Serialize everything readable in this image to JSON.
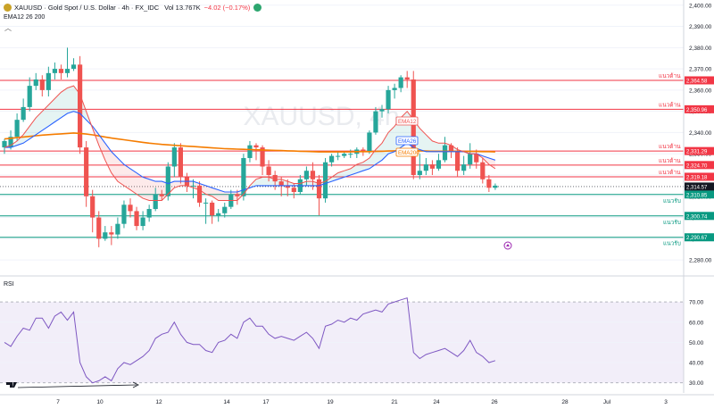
{
  "header": {
    "symbol": "XAUUSD",
    "title": "XAUUSD · Gold Spot / U.S. Dollar · 4h · FX_IDC",
    "volume": "Vol 13.767K",
    "change": "−4.02 (−0.17%)",
    "indicator": "EMA12 26 200",
    "sym_icon": "gold-coin-icon",
    "flag_icon": "market-open-icon"
  },
  "watermark": "XAUUSD, 4h",
  "rsi_title": "RSI",
  "colors": {
    "up": "#26a69a",
    "down": "#ef5350",
    "ema12": "#ef5350",
    "ema26": "#2962ff",
    "ema200": "#f57c00",
    "resistance": "#f23645",
    "support": "#089981",
    "rsi": "#7e57c2",
    "rsi_band": "#ede7f6"
  },
  "chart_data": {
    "type": "candlestick",
    "y_axis": {
      "ticks": [
        "2,400.00",
        "2,390.00",
        "2,380.00",
        "2,370.00",
        "2,360.00",
        "2,350.00",
        "2,340.00",
        "2,330.00",
        "2,320.00",
        "2,310.00",
        "2,300.00",
        "2,290.00",
        "2,280.00"
      ],
      "range": [
        2275,
        2402
      ]
    },
    "x_axis_labels": [
      "7",
      "10",
      "12",
      "14",
      "17",
      "19",
      "21",
      "24",
      "26",
      "28",
      "Jul",
      "3"
    ],
    "last_price": "2,314.57",
    "ema_labels": [
      "EMA12",
      "EMA26",
      "EMA200"
    ],
    "levels": [
      {
        "label": "แนวต้าน",
        "price": 2364.58,
        "text": "2,364.58",
        "kind": "resistance"
      },
      {
        "label": "แนวต้าน",
        "price": 2350.96,
        "text": "2,350.96",
        "kind": "resistance"
      },
      {
        "label": "แนวต้าน",
        "price": 2331.29,
        "text": "2,331.29",
        "kind": "resistance"
      },
      {
        "label": "แนวต้าน",
        "price": 2324.7,
        "text": "2,324.70",
        "kind": "resistance"
      },
      {
        "label": "แนวต้าน",
        "price": 2319.18,
        "text": "2,319.18",
        "kind": "resistance"
      },
      {
        "label": "แนวรับ",
        "price": 2310.85,
        "text": "2,310.85",
        "kind": "support"
      },
      {
        "label": "แนวรับ",
        "price": 2300.74,
        "text": "2,300.74",
        "kind": "support"
      },
      {
        "label": "แนวรับ",
        "price": 2290.67,
        "text": "2,290.67",
        "kind": "support"
      }
    ],
    "candles": [
      [
        2333,
        2336,
        2330,
        2337
      ],
      [
        2333,
        2338,
        2332,
        2341
      ],
      [
        2338,
        2346,
        2336,
        2349
      ],
      [
        2346,
        2352,
        2345,
        2356
      ],
      [
        2352,
        2362,
        2350,
        2366
      ],
      [
        2362,
        2365,
        2360,
        2368
      ],
      [
        2365,
        2360,
        2357,
        2367
      ],
      [
        2360,
        2368,
        2357,
        2371
      ],
      [
        2368,
        2370,
        2365,
        2373
      ],
      [
        2370,
        2368,
        2365,
        2372
      ],
      [
        2368,
        2370,
        2366,
        2380
      ],
      [
        2370,
        2372,
        2369,
        2375
      ],
      [
        2372,
        2333,
        2330,
        2376
      ],
      [
        2333,
        2310,
        2305,
        2336
      ],
      [
        2310,
        2300,
        2293,
        2313
      ],
      [
        2300,
        2290,
        2286,
        2303
      ],
      [
        2290,
        2293,
        2289,
        2296
      ],
      [
        2293,
        2292,
        2287,
        2296
      ],
      [
        2292,
        2297,
        2290,
        2300
      ],
      [
        2297,
        2306,
        2295,
        2308
      ],
      [
        2306,
        2303,
        2300,
        2309
      ],
      [
        2303,
        2296,
        2294,
        2305
      ],
      [
        2296,
        2300,
        2294,
        2303
      ],
      [
        2300,
        2304,
        2298,
        2306
      ],
      [
        2304,
        2311,
        2303,
        2314
      ],
      [
        2311,
        2310,
        2308,
        2313
      ],
      [
        2310,
        2324,
        2308,
        2326
      ],
      [
        2324,
        2333,
        2319,
        2335
      ],
      [
        2333,
        2319,
        2316,
        2335
      ],
      [
        2319,
        2315,
        2312,
        2321
      ],
      [
        2315,
        2315,
        2309,
        2318
      ],
      [
        2315,
        2307,
        2305,
        2317
      ],
      [
        2307,
        2307,
        2297,
        2309
      ],
      [
        2307,
        2301,
        2297,
        2308
      ],
      [
        2301,
        2302,
        2298,
        2304
      ],
      [
        2302,
        2305,
        2300,
        2307
      ],
      [
        2305,
        2311,
        2304,
        2313
      ],
      [
        2311,
        2310,
        2306,
        2313
      ],
      [
        2310,
        2328,
        2308,
        2330
      ],
      [
        2328,
        2334,
        2326,
        2336
      ],
      [
        2334,
        2333,
        2327,
        2335
      ],
      [
        2333,
        2324,
        2320,
        2334
      ],
      [
        2324,
        2320,
        2317,
        2327
      ],
      [
        2320,
        2317,
        2313,
        2322
      ],
      [
        2317,
        2315,
        2310,
        2319
      ],
      [
        2315,
        2314,
        2310,
        2318
      ],
      [
        2314,
        2312,
        2309,
        2316
      ],
      [
        2312,
        2318,
        2311,
        2320
      ],
      [
        2318,
        2322,
        2315,
        2324
      ],
      [
        2322,
        2318,
        2313,
        2326
      ],
      [
        2318,
        2309,
        2301,
        2320
      ],
      [
        2309,
        2326,
        2307,
        2328
      ],
      [
        2326,
        2329,
        2324,
        2330
      ],
      [
        2329,
        2329,
        2327,
        2331
      ],
      [
        2329,
        2330,
        2328,
        2331
      ],
      [
        2330,
        2330,
        2328,
        2332
      ],
      [
        2330,
        2332,
        2328,
        2333
      ],
      [
        2332,
        2331,
        2329,
        2333
      ],
      [
        2331,
        2340,
        2330,
        2341
      ],
      [
        2340,
        2350,
        2339,
        2352
      ],
      [
        2350,
        2351,
        2347,
        2353
      ],
      [
        2351,
        2360,
        2349,
        2362
      ],
      [
        2360,
        2361,
        2356,
        2363
      ],
      [
        2361,
        2366,
        2359,
        2367
      ],
      [
        2366,
        2365,
        2361,
        2369
      ],
      [
        2365,
        2320,
        2318,
        2369
      ],
      [
        2320,
        2322,
        2318,
        2330
      ],
      [
        2322,
        2325,
        2320,
        2328
      ],
      [
        2325,
        2323,
        2320,
        2327
      ],
      [
        2323,
        2327,
        2322,
        2330
      ],
      [
        2327,
        2334,
        2326,
        2338
      ],
      [
        2334,
        2331,
        2328,
        2335
      ],
      [
        2331,
        2322,
        2319,
        2333
      ],
      [
        2322,
        2325,
        2320,
        2329
      ],
      [
        2325,
        2330,
        2323,
        2335
      ],
      [
        2330,
        2326,
        2323,
        2332
      ],
      [
        2326,
        2318,
        2316,
        2328
      ],
      [
        2318,
        2314,
        2312,
        2320
      ],
      [
        2314,
        2315,
        2313,
        2316
      ]
    ],
    "ema12": [
      2333,
      2334,
      2336,
      2339,
      2343,
      2347,
      2350,
      2353,
      2356,
      2359,
      2361,
      2362,
      2358,
      2350,
      2342,
      2334,
      2327,
      2321,
      2317,
      2315,
      2313,
      2311,
      2309,
      2308,
      2308,
      2308,
      2311,
      2314,
      2315,
      2315,
      2314,
      2313,
      2311,
      2310,
      2308,
      2308,
      2308,
      2308,
      2311,
      2315,
      2318,
      2319,
      2319,
      2318,
      2318,
      2317,
      2316,
      2316,
      2317,
      2317,
      2316,
      2317,
      2319,
      2321,
      2322,
      2323,
      2325,
      2326,
      2328,
      2332,
      2335,
      2340,
      2343,
      2347,
      2350,
      2346,
      2342,
      2339,
      2336,
      2335,
      2335,
      2334,
      2332,
      2331,
      2330,
      2330,
      2328,
      2325,
      2323
    ],
    "ema26": [
      2333,
      2333,
      2334,
      2335,
      2337,
      2339,
      2341,
      2343,
      2345,
      2347,
      2349,
      2350,
      2349,
      2346,
      2343,
      2339,
      2335,
      2331,
      2328,
      2325,
      2323,
      2321,
      2319,
      2318,
      2317,
      2317,
      2316,
      2317,
      2317,
      2317,
      2317,
      2316,
      2315,
      2314,
      2313,
      2312,
      2312,
      2312,
      2313,
      2314,
      2315,
      2315,
      2315,
      2315,
      2315,
      2315,
      2315,
      2315,
      2315,
      2315,
      2315,
      2316,
      2317,
      2318,
      2319,
      2320,
      2321,
      2322,
      2323,
      2325,
      2327,
      2330,
      2331,
      2333,
      2335,
      2333,
      2332,
      2331,
      2331,
      2331,
      2331,
      2331,
      2331,
      2331,
      2330,
      2330,
      2329,
      2328,
      2327
    ],
    "ema200": [
      2337,
      2337.3,
      2337.6,
      2337.9,
      2338.2,
      2338.5,
      2338.8,
      2339,
      2339.2,
      2339.4,
      2339.6,
      2339.8,
      2339.6,
      2339.3,
      2338.9,
      2338.4,
      2337.9,
      2337.4,
      2337,
      2336.6,
      2336.2,
      2335.8,
      2335.4,
      2335,
      2334.7,
      2334.4,
      2334.2,
      2334,
      2333.8,
      2333.6,
      2333.4,
      2333.2,
      2333,
      2332.8,
      2332.6,
      2332.4,
      2332.3,
      2332.2,
      2332.1,
      2332,
      2331.9,
      2331.8,
      2331.7,
      2331.6,
      2331.5,
      2331.4,
      2331.3,
      2331.2,
      2331.1,
      2331,
      2330.9,
      2330.9,
      2330.9,
      2330.9,
      2330.9,
      2330.9,
      2331,
      2331,
      2331,
      2331.1,
      2331.2,
      2331.3,
      2331.4,
      2331.5,
      2331.6,
      2331.5,
      2331.4,
      2331.3,
      2331.2,
      2331.2,
      2331.2,
      2331.2,
      2331.2,
      2331.1,
      2331.1,
      2331.1,
      2331,
      2331,
      2330.9
    ],
    "rsi": {
      "ticks": [
        "70.00",
        "60.00",
        "50.00",
        "40.00",
        "30.00"
      ],
      "range": [
        25,
        78
      ],
      "values": [
        50,
        48,
        53,
        57,
        56,
        62,
        62,
        57,
        63,
        65,
        61,
        65,
        40,
        33,
        30,
        31,
        33,
        31,
        37,
        40,
        39,
        41,
        43,
        46,
        52,
        54,
        55,
        60,
        54,
        50,
        49,
        49,
        46,
        45,
        50,
        51,
        54,
        52,
        60,
        62,
        58,
        58,
        54,
        52,
        53,
        52,
        51,
        53,
        55,
        52,
        47,
        58,
        59,
        61,
        60,
        62,
        61,
        64,
        65,
        66,
        65,
        69,
        70,
        71,
        72,
        45,
        42,
        44,
        45,
        46,
        47,
        45,
        43,
        46,
        51,
        45,
        43,
        40,
        41
      ]
    }
  }
}
